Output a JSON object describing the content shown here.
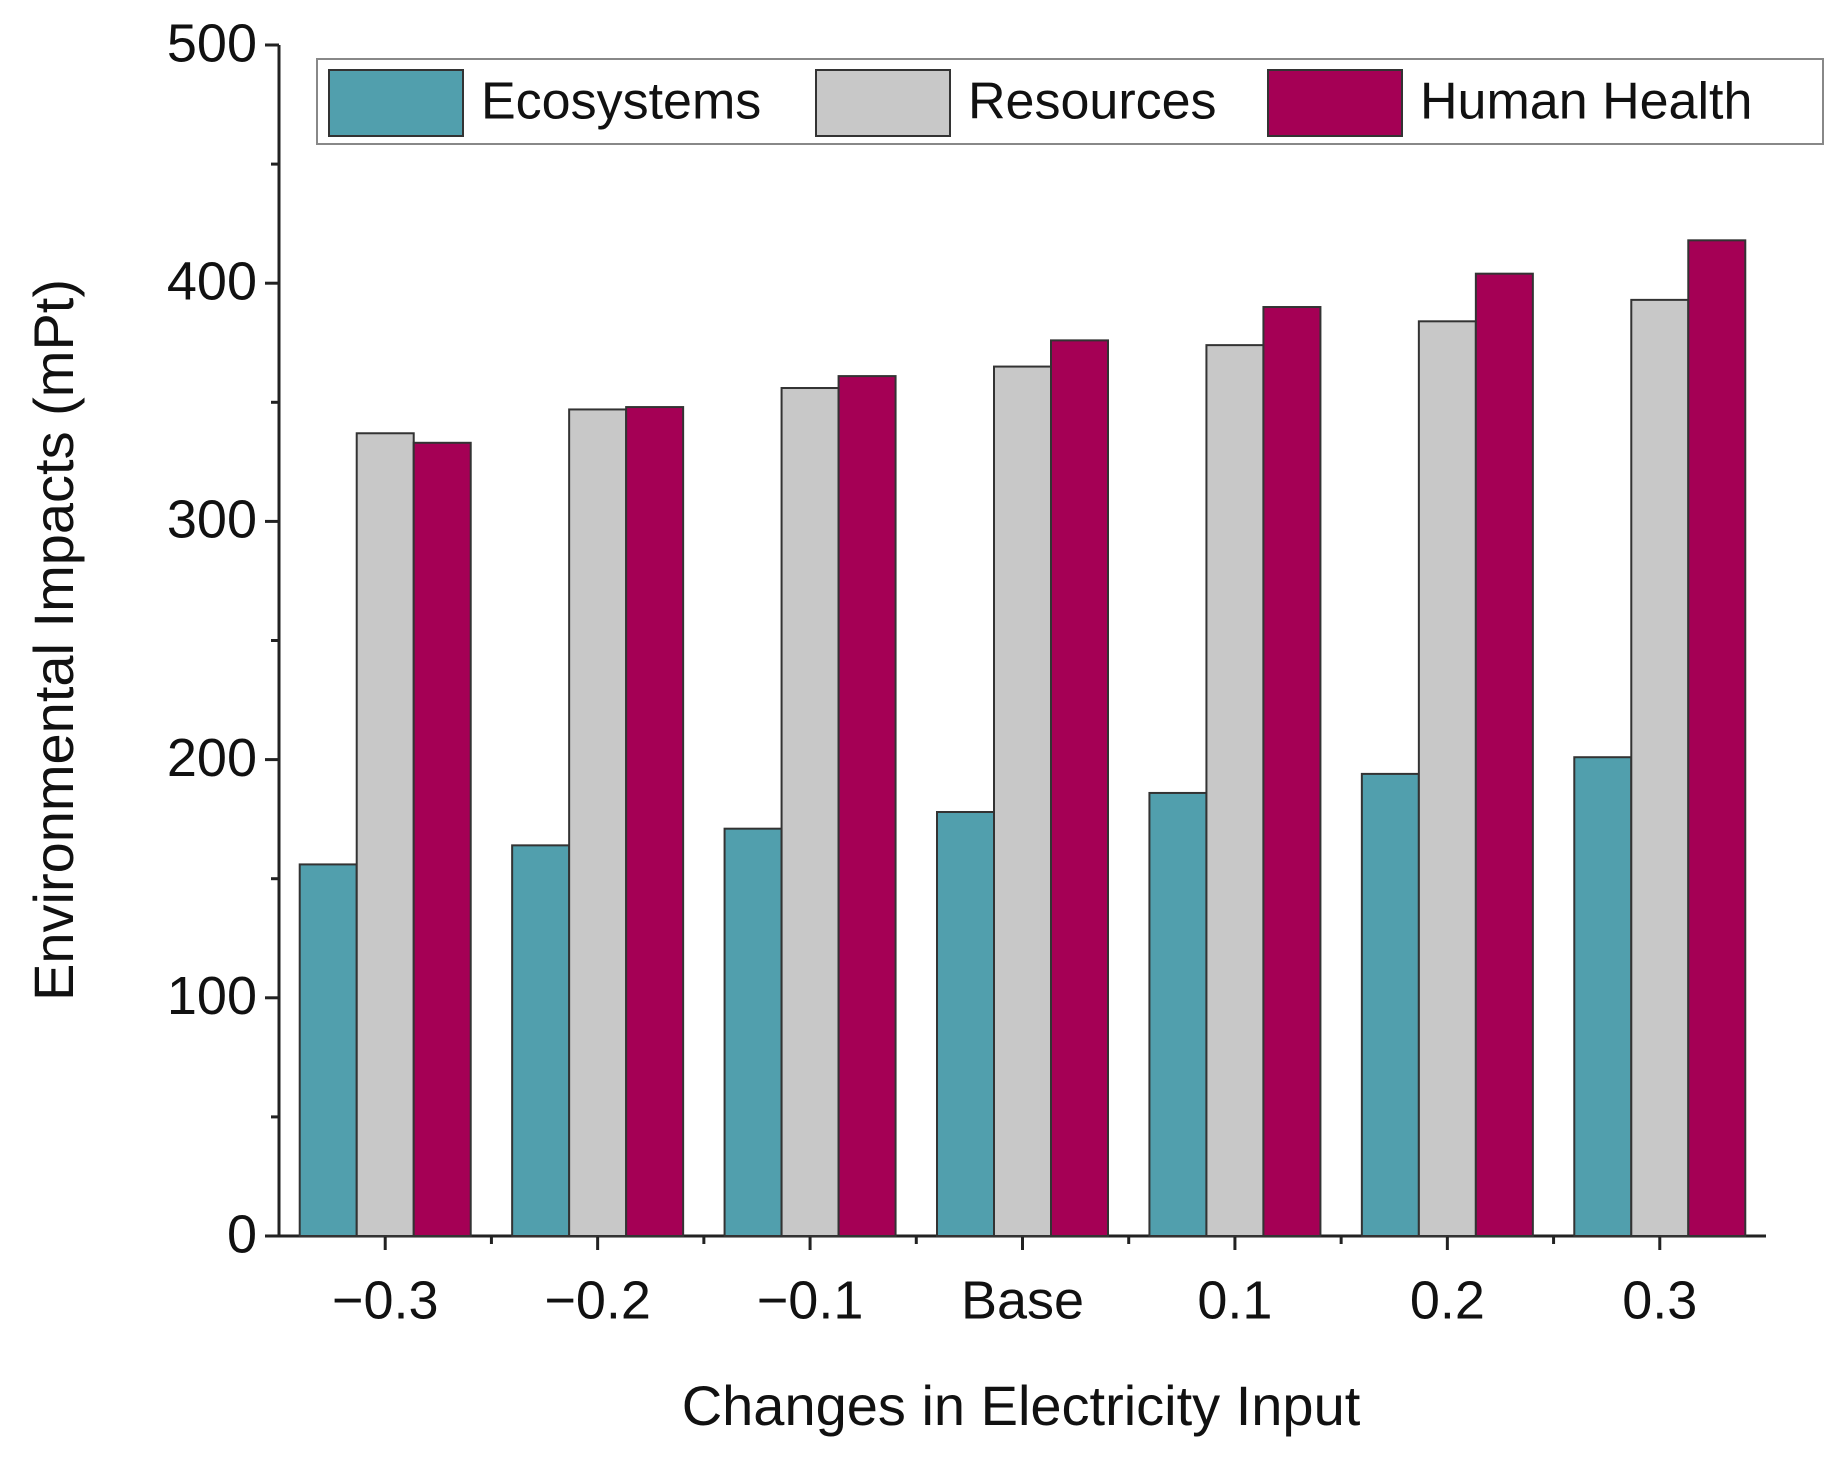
{
  "chart_data": {
    "type": "bar",
    "x_label": "Changes in Electricity Input",
    "y_label": "Environmental Impacts (mPt)",
    "categories": [
      "−0.3",
      "−0.2",
      "−0.1",
      "Base",
      "0.1",
      "0.2",
      "0.3"
    ],
    "series": [
      {
        "name": "Ecosystems",
        "color": "#519fad",
        "values": [
          156,
          164,
          171,
          178,
          186,
          194,
          201
        ]
      },
      {
        "name": "Resources",
        "color": "#c8c8c8",
        "values": [
          337,
          347,
          356,
          365,
          374,
          384,
          393
        ]
      },
      {
        "name": "Human Health",
        "color": "#a50055",
        "values": [
          333,
          348,
          361,
          376,
          390,
          404,
          418
        ]
      }
    ],
    "ylim": [
      0,
      500
    ],
    "yticks": [
      0,
      100,
      200,
      300,
      400,
      500
    ],
    "legend": "top"
  }
}
